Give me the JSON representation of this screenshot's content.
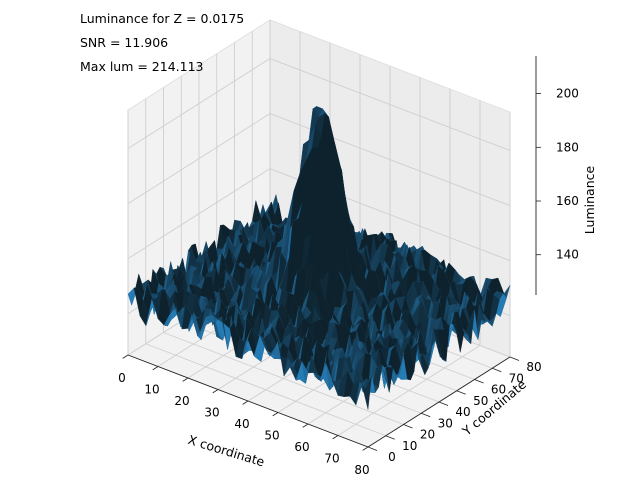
{
  "chart_data": {
    "type": "surface",
    "title": "",
    "annotations": [
      "Luminance for Z = 0.0175",
      "SNR = 11.906",
      "Max lum = 214.113"
    ],
    "xlabel": "X coordinate",
    "ylabel": "Y coordinate",
    "zlabel": "Luminance",
    "x_ticks": [
      "0",
      "10",
      "20",
      "30",
      "40",
      "50",
      "60",
      "70",
      "80"
    ],
    "y_ticks": [
      "0",
      "10",
      "20",
      "30",
      "40",
      "50",
      "60",
      "70",
      "80"
    ],
    "z_ticks": [
      "140",
      "160",
      "180",
      "200"
    ],
    "xlim": [
      0,
      80
    ],
    "ylim": [
      0,
      80
    ],
    "zlim": [
      125,
      214
    ],
    "surface_color": "#1f77b4",
    "background": "Gaussian-like peak near center rising to about 214 over a noisy base around 140-160",
    "peak": {
      "x": 40,
      "y": 40,
      "z": 214.113
    },
    "base_level": 145,
    "grid": true
  }
}
